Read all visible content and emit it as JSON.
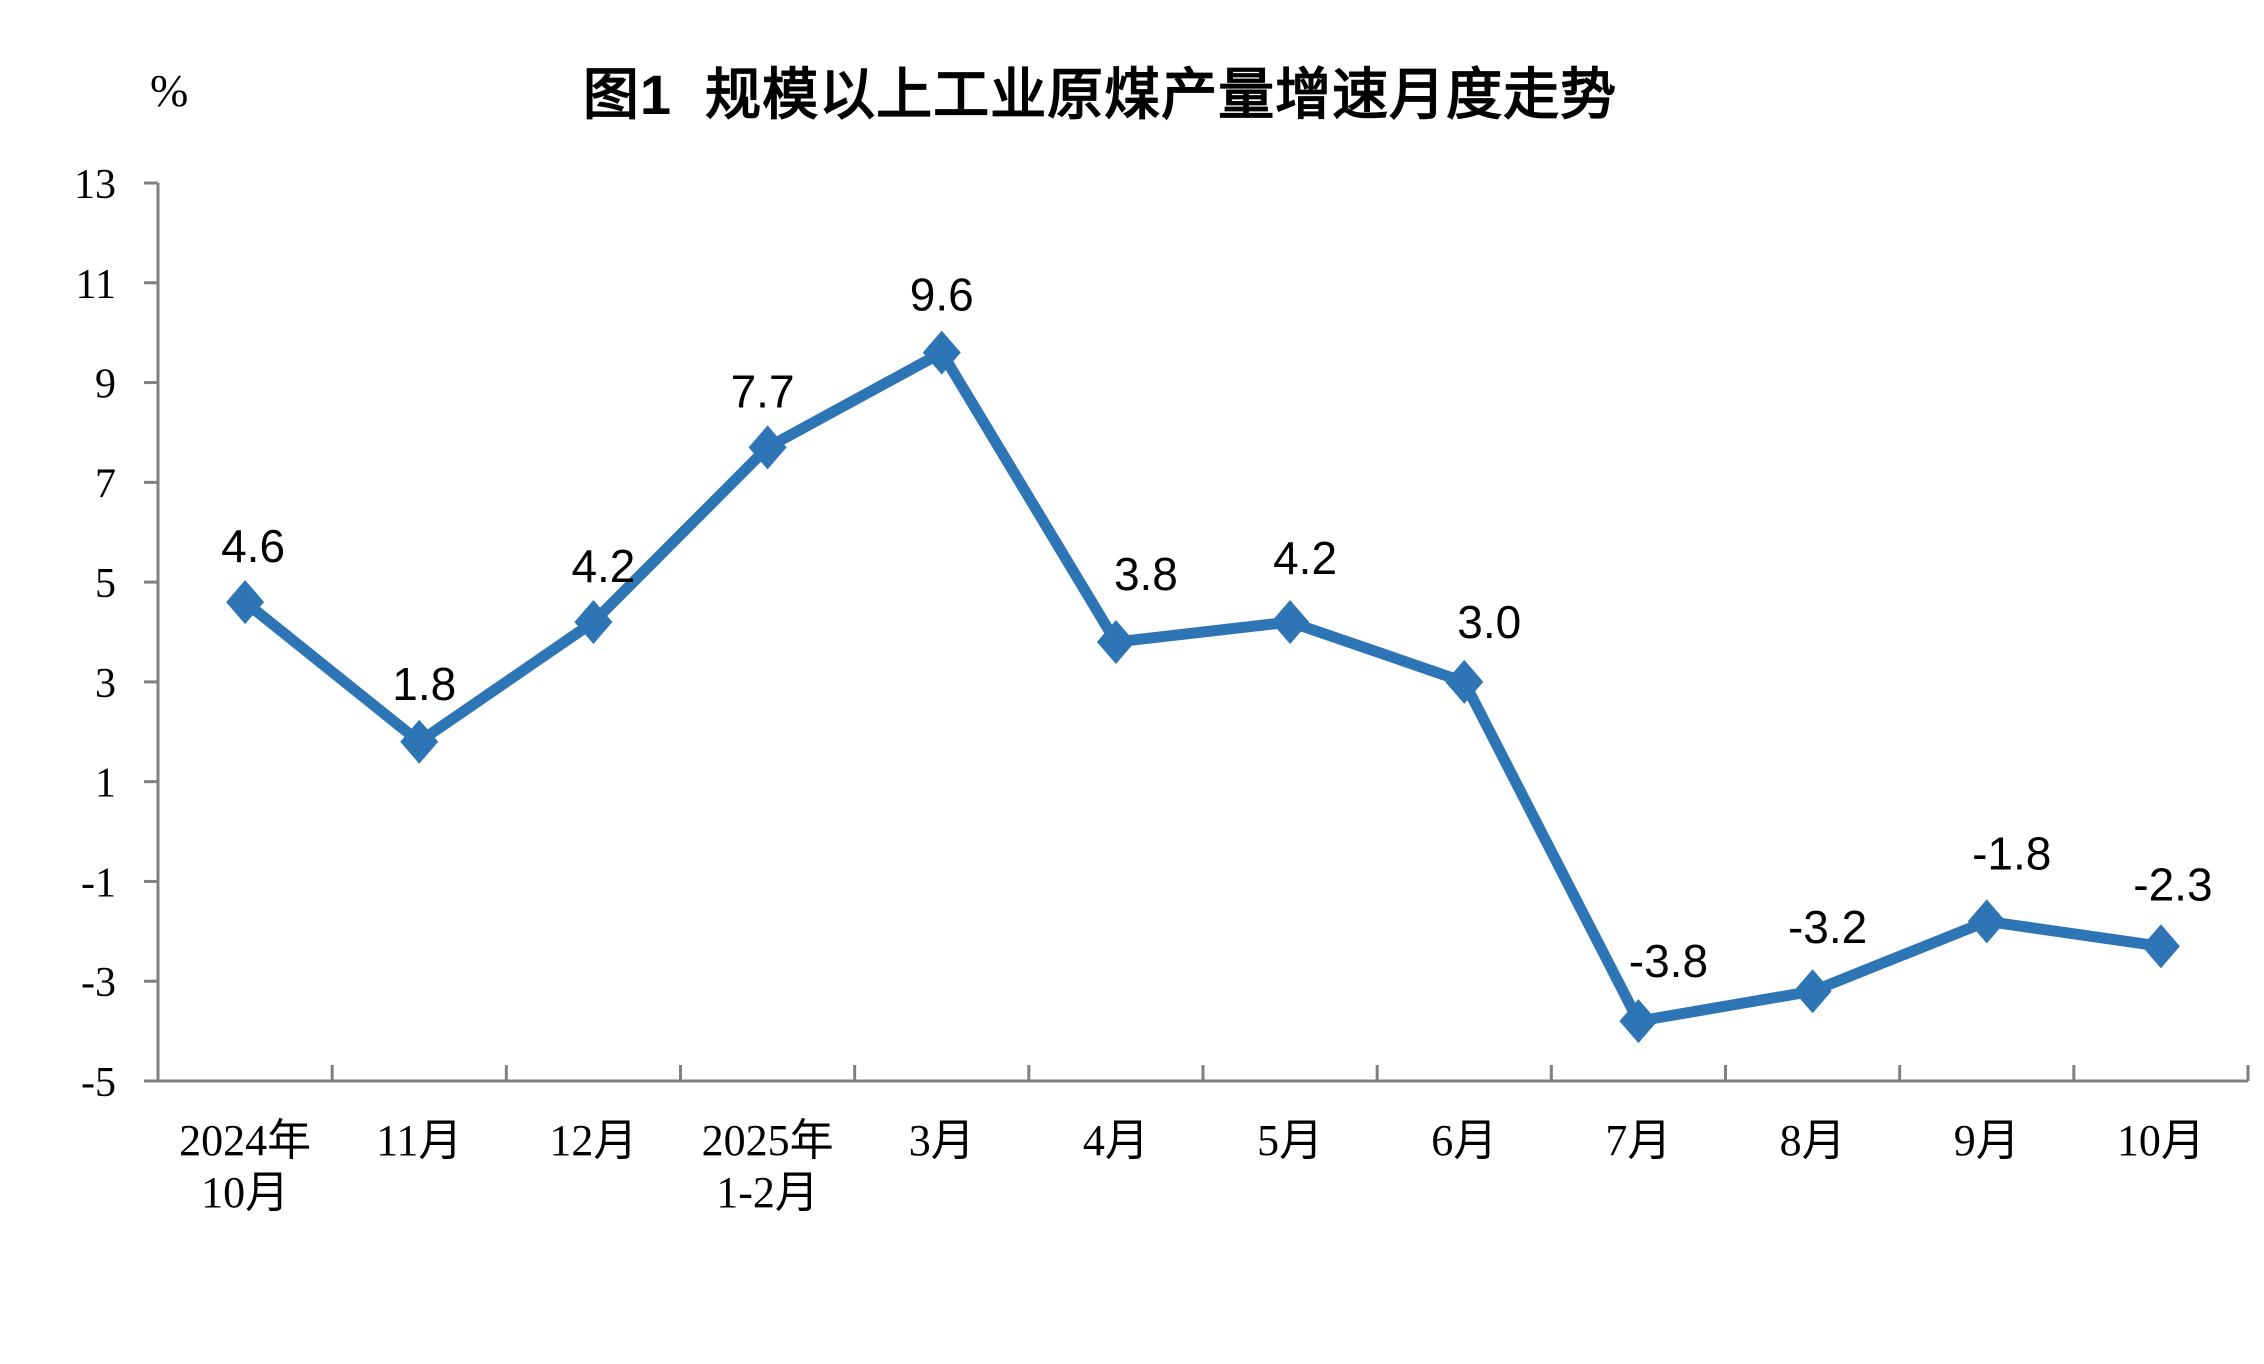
{
  "chart_data": {
    "type": "line",
    "title": "图1  规模以上工业原煤产量增速月度走势",
    "unit_label": "%",
    "categories": [
      "2024年\n10月",
      "11月",
      "12月",
      "2025年\n1-2月",
      "3月",
      "4月",
      "5月",
      "6月",
      "7月",
      "8月",
      "9月",
      "10月"
    ],
    "values": [
      4.6,
      1.8,
      4.2,
      7.7,
      9.6,
      3.8,
      4.2,
      3.0,
      -3.8,
      -3.2,
      -1.8,
      -2.3
    ],
    "data_labels": [
      "4.6",
      "1.8",
      "4.2",
      "7.7",
      "9.6",
      "3.8",
      "4.2",
      "3.0",
      "-3.8",
      "-3.2",
      "-1.8",
      "-2.3"
    ],
    "ylim": [
      -5,
      13
    ],
    "yticks": [
      13,
      11,
      9,
      7,
      5,
      3,
      1,
      -1,
      -3,
      -5
    ],
    "grid": false,
    "legend": "none",
    "marker_shape": "diamond",
    "colors": {
      "line": "#2E75B6",
      "marker": "#2E75B6",
      "axis": "#808080",
      "text": "#000000"
    }
  }
}
